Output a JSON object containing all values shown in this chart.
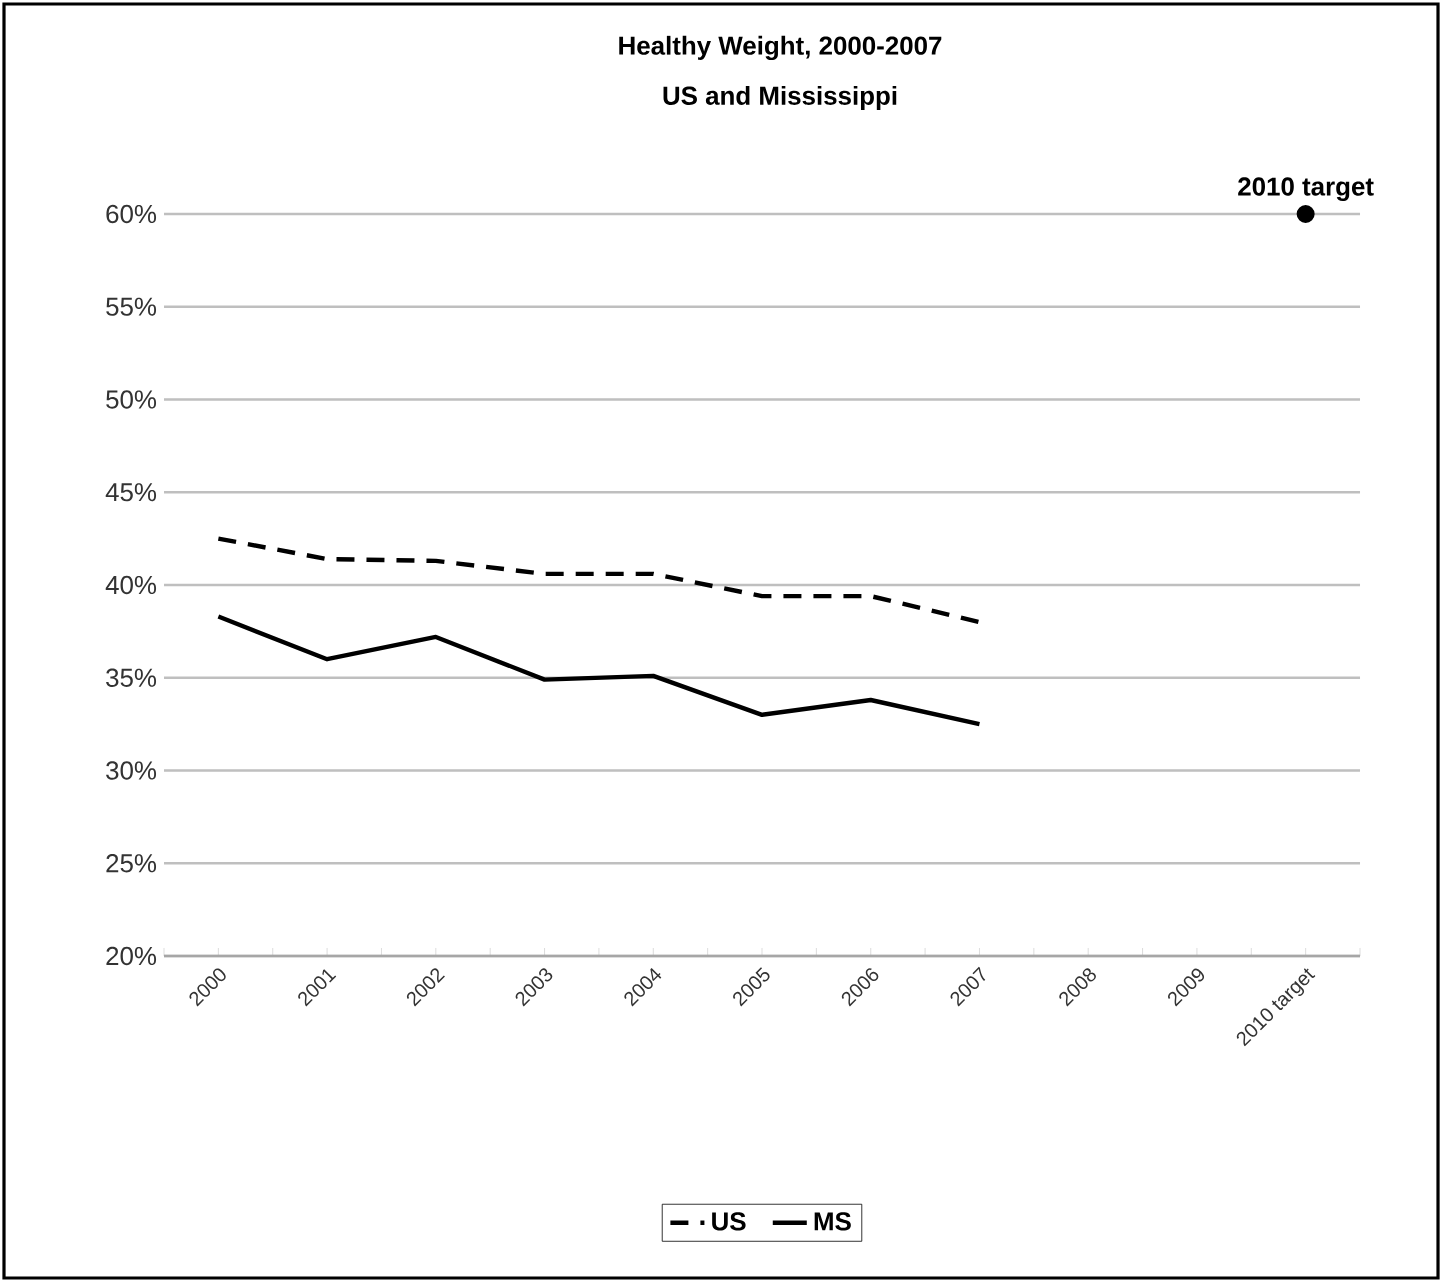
{
  "chart_data": {
    "type": "line",
    "title": "Healthy Weight, 2000-2007",
    "subtitle": "US and Mississippi",
    "categories": [
      "2000",
      "2001",
      "2002",
      "2003",
      "2004",
      "2005",
      "2006",
      "2007",
      "2008",
      "2009",
      "2010 target"
    ],
    "series": [
      {
        "name": "US",
        "color": "#000000",
        "line_style": "dashed",
        "values": [
          42.5,
          41.4,
          41.3,
          40.6,
          40.6,
          39.4,
          39.4,
          38.0,
          null,
          null,
          null
        ]
      },
      {
        "name": "MS",
        "color": "#000000",
        "line_style": "solid",
        "values": [
          38.3,
          36.0,
          37.2,
          34.9,
          35.1,
          33.0,
          33.8,
          32.5,
          null,
          null,
          null
        ]
      },
      {
        "name": "2010 target",
        "type": "scatter",
        "marker": "circle",
        "color": "#000000",
        "values": [
          null,
          null,
          null,
          null,
          null,
          null,
          null,
          null,
          null,
          null,
          60
        ]
      }
    ],
    "ylim": [
      20,
      60
    ],
    "yticks": [
      {
        "value": 20,
        "label": "20%"
      },
      {
        "value": 25,
        "label": "25%"
      },
      {
        "value": 30,
        "label": "30%"
      },
      {
        "value": 35,
        "label": "35%"
      },
      {
        "value": 40,
        "label": "40%"
      },
      {
        "value": 45,
        "label": "45%"
      },
      {
        "value": 50,
        "label": "50%"
      },
      {
        "value": 55,
        "label": "55%"
      },
      {
        "value": 60,
        "label": "60%"
      }
    ],
    "grid": "y",
    "legend": "bottom"
  }
}
